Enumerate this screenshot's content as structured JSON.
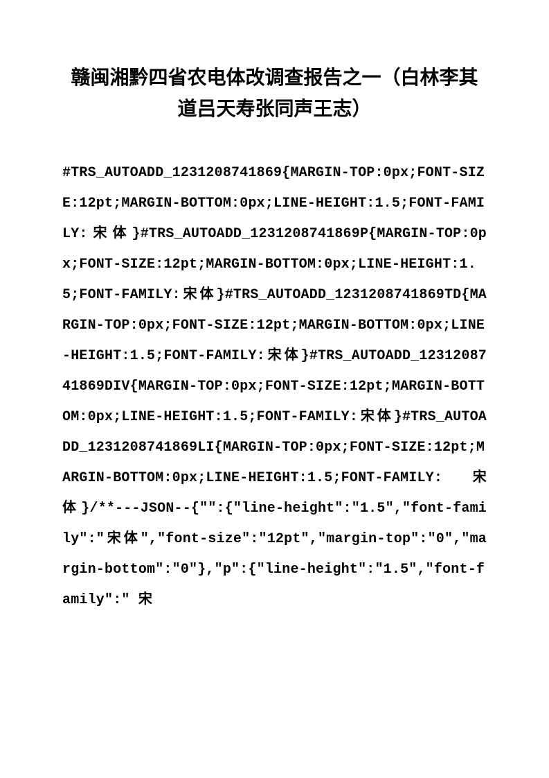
{
  "document": {
    "title": "赣闽湘黔四省农电体改调查报告之一（白林李其道吕天寿张同声王志）",
    "body": "#TRS_AUTOADD_1231208741869{MARGIN-TOP:0px;FONT-SIZE:12pt;MARGIN-BOTTOM:0px;LINE-HEIGHT:1.5;FONT-FAMILY:宋体}#TRS_AUTOADD_1231208741869P{MARGIN-TOP:0px;FONT-SIZE:12pt;MARGIN-BOTTOM:0px;LINE-HEIGHT:1.5;FONT-FAMILY:宋体}#TRS_AUTOADD_1231208741869TD{MARGIN-TOP:0px;FONT-SIZE:12pt;MARGIN-BOTTOM:0px;LINE-HEIGHT:1.5;FONT-FAMILY:宋体}#TRS_AUTOADD_1231208741869DIV{MARGIN-TOP:0px;FONT-SIZE:12pt;MARGIN-BOTTOM:0px;LINE-HEIGHT:1.5;FONT-FAMILY:宋体}#TRS_AUTOADD_1231208741869LI{MARGIN-TOP:0px;FONT-SIZE:12pt;MARGIN-BOTTOM:0px;LINE-HEIGHT:1.5;FONT-FAMILY:宋体}/**---JSON--{\"\":{\"line-height\":\"1.5\",\"font-family\":\"宋体\",\"font-size\":\"12pt\",\"margin-top\":\"0\",\"margin-bottom\":\"0\"},\"p\":{\"line-height\":\"1.5\",\"font-family\":\" 宋"
  }
}
